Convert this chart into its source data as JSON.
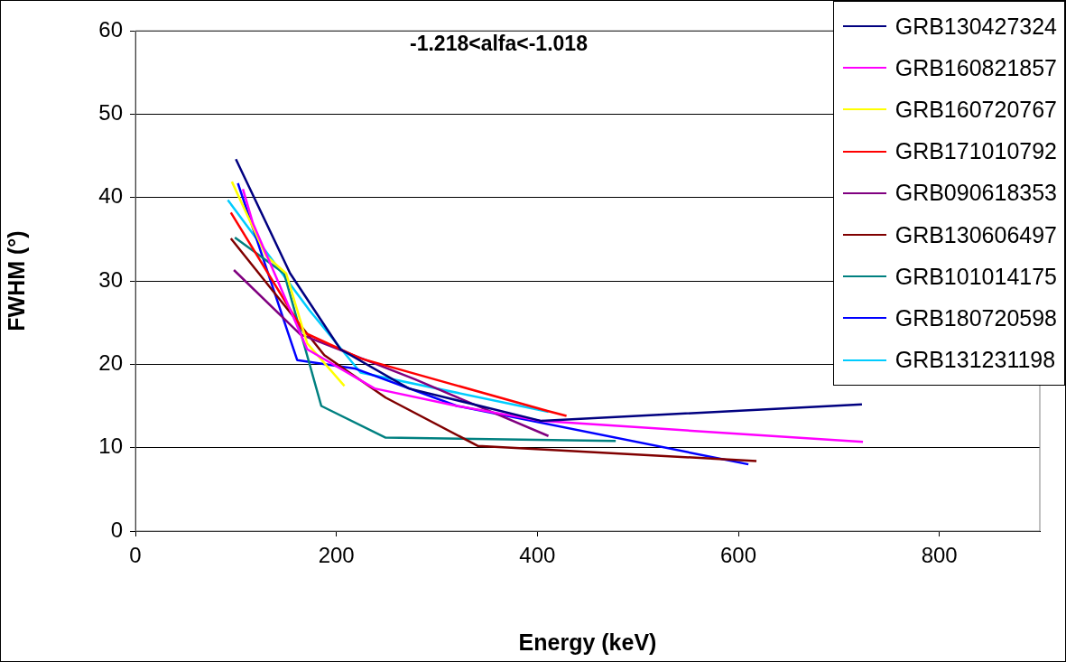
{
  "chart_data": {
    "type": "line",
    "xlabel": "Energy (keV)",
    "ylabel": "FWHM (°)",
    "annotations": [
      "-1.218<alfa<-1.018"
    ],
    "xlim": [
      0,
      900
    ],
    "xticks": [
      0,
      200,
      400,
      600,
      800
    ],
    "ylim": [
      0,
      60
    ],
    "yticks": [
      0,
      10,
      20,
      30,
      40,
      50,
      60
    ],
    "grid": "y",
    "legend": "top right",
    "marker": "none",
    "series": [
      {
        "name": "GRB130427324",
        "color": "#000080",
        "x": [
          100,
          154,
          204,
          272,
          404,
          723
        ],
        "values": [
          44.6,
          30.9,
          21.8,
          17.1,
          13.2,
          15.2
        ]
      },
      {
        "name": "GRB160821857",
        "color": "#ff00ff",
        "x": [
          107,
          117,
          171,
          238,
          320,
          404,
          724
        ],
        "values": [
          41,
          36.9,
          21.8,
          17.1,
          15,
          13.2,
          10.7
        ]
      },
      {
        "name": "GRB160720767",
        "color": "#ffff00",
        "x": [
          96,
          130,
          150,
          171,
          208
        ],
        "values": [
          41.9,
          33,
          30.9,
          22.5,
          17.4
        ]
      },
      {
        "name": "GRB171010792",
        "color": "#ff0000",
        "x": [
          95,
          168,
          224,
          410,
          429
        ],
        "values": [
          38.2,
          23.8,
          20.7,
          14.4,
          13.8
        ]
      },
      {
        "name": "GRB090618353",
        "color": "#800080",
        "x": [
          98,
          164,
          278,
          411
        ],
        "values": [
          31.3,
          23.6,
          18.2,
          11.4
        ]
      },
      {
        "name": "GRB130606497",
        "color": "#800000",
        "x": [
          95,
          188,
          249,
          341,
          618
        ],
        "values": [
          35.1,
          21.1,
          16,
          10.2,
          8.4
        ]
      },
      {
        "name": "GRB101014175",
        "color": "#008080",
        "x": [
          99,
          148,
          185,
          249,
          478
        ],
        "values": [
          35.2,
          30.9,
          15,
          11.2,
          10.8
        ]
      },
      {
        "name": "GRB180720598",
        "color": "#0000ff",
        "x": [
          102,
          161,
          218,
          320,
          610
        ],
        "values": [
          41.7,
          20.5,
          19.5,
          15,
          8
        ]
      },
      {
        "name": "GRB131231198",
        "color": "#00ccff",
        "x": [
          92,
          173,
          224,
          411
        ],
        "values": [
          39.7,
          26.5,
          19,
          14.3
        ]
      }
    ]
  }
}
